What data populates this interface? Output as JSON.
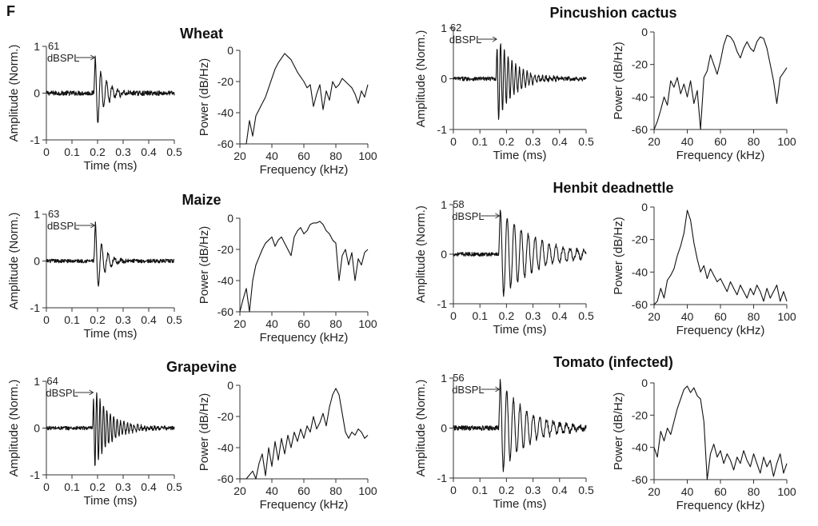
{
  "panel_label": "F",
  "chart_data": [
    {
      "type": "line",
      "plant": "Wheat",
      "level": "61",
      "level_unit": "dBSPL",
      "waveform": {
        "xlabel": "Time (ms)",
        "ylabel": "Amplitude (Norm.)",
        "xlim": [
          0,
          0.5
        ],
        "ylim": [
          -1,
          1
        ],
        "xticks": [
          "0",
          "0.1",
          "0.2",
          "0.3",
          "0.4",
          "0.5"
        ],
        "yticks": [
          "-1",
          "0",
          "1"
        ],
        "onset": 0.185,
        "peak": 1.0,
        "freq_khz": 45,
        "decay_ms": 0.035,
        "noise": 0.05
      },
      "spectrum": {
        "xlabel": "Frequency (kHz)",
        "ylabel": "Power (dB/Hz)",
        "xlim": [
          20,
          100
        ],
        "ylim": [
          -60,
          0
        ],
        "xticks": [
          "20",
          "40",
          "60",
          "80",
          "100"
        ],
        "yticks": [
          "-60",
          "-40",
          "-20",
          "0"
        ],
        "x": [
          20,
          24,
          26,
          28,
          30,
          32,
          34,
          36,
          38,
          40,
          42,
          44,
          46,
          48,
          50,
          52,
          54,
          56,
          58,
          60,
          62,
          64,
          66,
          68,
          70,
          72,
          74,
          76,
          78,
          80,
          82,
          84,
          86,
          88,
          90,
          92,
          94,
          96,
          98,
          100
        ],
        "y": [
          -60,
          -60,
          -45,
          -55,
          -42,
          -38,
          -34,
          -30,
          -24,
          -18,
          -12,
          -8,
          -5,
          -2,
          -4,
          -6,
          -10,
          -14,
          -17,
          -20,
          -24,
          -22,
          -36,
          -28,
          -22,
          -38,
          -26,
          -32,
          -20,
          -24,
          -22,
          -18,
          -20,
          -22,
          -24,
          -28,
          -34,
          -26,
          -30,
          -22
        ]
      }
    },
    {
      "type": "line",
      "plant": "Maize",
      "level": "63",
      "level_unit": "dBSPL",
      "waveform": {
        "xlabel": "Time (ms)",
        "ylabel": "Amplitude (Norm.)",
        "xlim": [
          0,
          0.5
        ],
        "ylim": [
          -1,
          1
        ],
        "xticks": [
          "0",
          "0.1",
          "0.2",
          "0.3",
          "0.4",
          "0.5"
        ],
        "yticks": [
          "-1",
          "0",
          "1"
        ],
        "onset": 0.185,
        "peak": 1.0,
        "freq_khz": 40,
        "decay_ms": 0.03,
        "noise": 0.04
      },
      "spectrum": {
        "xlabel": "Frequency (kHz)",
        "ylabel": "Power (dB/Hz)",
        "xlim": [
          20,
          100
        ],
        "ylim": [
          -60,
          0
        ],
        "xticks": [
          "20",
          "40",
          "60",
          "80",
          "100"
        ],
        "yticks": [
          "-60",
          "-40",
          "-20",
          "0"
        ],
        "x": [
          20,
          22,
          24,
          26,
          28,
          30,
          32,
          34,
          36,
          38,
          40,
          42,
          44,
          46,
          48,
          50,
          52,
          54,
          56,
          58,
          60,
          62,
          64,
          66,
          68,
          70,
          72,
          74,
          76,
          78,
          80,
          82,
          84,
          86,
          88,
          90,
          92,
          94,
          96,
          98,
          100
        ],
        "y": [
          -60,
          -52,
          -45,
          -60,
          -40,
          -30,
          -25,
          -20,
          -16,
          -14,
          -12,
          -18,
          -14,
          -12,
          -16,
          -20,
          -24,
          -12,
          -8,
          -6,
          -10,
          -8,
          -4,
          -3,
          -3,
          -2,
          -4,
          -8,
          -10,
          -14,
          -16,
          -40,
          -24,
          -20,
          -30,
          -22,
          -40,
          -26,
          -30,
          -22,
          -20
        ]
      }
    },
    {
      "type": "line",
      "plant": "Grapevine",
      "level": "64",
      "level_unit": "dBSPL",
      "waveform": {
        "xlabel": "Time (ms)",
        "ylabel": "Amplitude (Norm.)",
        "xlim": [
          0,
          0.5
        ],
        "ylim": [
          -1,
          1
        ],
        "xticks": [
          "0",
          "0.1",
          "0.2",
          "0.3",
          "0.4",
          "0.5"
        ],
        "yticks": [
          "-1",
          "0",
          "1"
        ],
        "onset": 0.18,
        "peak": 1.0,
        "freq_khz": 75,
        "decay_ms": 0.06,
        "noise": 0.04
      },
      "spectrum": {
        "xlabel": "Frequency (kHz)",
        "ylabel": "Power (dB/Hz)",
        "xlim": [
          20,
          100
        ],
        "ylim": [
          -60,
          0
        ],
        "xticks": [
          "20",
          "40",
          "60",
          "80",
          "100"
        ],
        "yticks": [
          "-60",
          "-40",
          "-20",
          "0"
        ],
        "x": [
          20,
          24,
          28,
          30,
          32,
          34,
          36,
          38,
          40,
          42,
          44,
          46,
          48,
          50,
          52,
          54,
          56,
          58,
          60,
          62,
          64,
          66,
          68,
          70,
          72,
          74,
          76,
          78,
          80,
          82,
          84,
          86,
          88,
          90,
          92,
          94,
          96,
          98,
          100
        ],
        "y": [
          -60,
          -60,
          -55,
          -60,
          -50,
          -44,
          -58,
          -40,
          -52,
          -36,
          -48,
          -34,
          -44,
          -32,
          -40,
          -30,
          -36,
          -28,
          -34,
          -26,
          -30,
          -20,
          -28,
          -24,
          -18,
          -26,
          -14,
          -6,
          -2,
          -6,
          -18,
          -30,
          -34,
          -30,
          -32,
          -28,
          -30,
          -34,
          -32
        ]
      }
    },
    {
      "type": "line",
      "plant": "Pincushion cactus",
      "level": "62",
      "level_unit": "dBSPL",
      "waveform": {
        "xlabel": "Time (ms)",
        "ylabel": "Amplitude (Norm.)",
        "xlim": [
          0,
          0.5
        ],
        "ylim": [
          -1,
          1
        ],
        "xticks": [
          "0",
          "0.1",
          "0.2",
          "0.3",
          "0.4",
          "0.5"
        ],
        "yticks": [
          "-1",
          "0",
          "1"
        ],
        "onset": 0.16,
        "peak": 0.95,
        "freq_khz": 70,
        "decay_ms": 0.06,
        "noise": 0.04
      },
      "spectrum": {
        "xlabel": "Frequency (kHz)",
        "ylabel": "Power (dB/Hz)",
        "xlim": [
          20,
          100
        ],
        "ylim": [
          -60,
          0
        ],
        "xticks": [
          "20",
          "40",
          "60",
          "80",
          "100"
        ],
        "yticks": [
          "-60",
          "-40",
          "-20",
          "0"
        ],
        "x": [
          20,
          22,
          24,
          26,
          28,
          30,
          32,
          34,
          36,
          38,
          40,
          42,
          44,
          46,
          48,
          50,
          52,
          54,
          56,
          58,
          60,
          62,
          64,
          66,
          68,
          70,
          72,
          74,
          76,
          78,
          80,
          82,
          84,
          86,
          88,
          90,
          92,
          94,
          96,
          98,
          100
        ],
        "y": [
          -60,
          -55,
          -48,
          -40,
          -45,
          -30,
          -34,
          -28,
          -38,
          -32,
          -40,
          -30,
          -44,
          -36,
          -60,
          -28,
          -24,
          -14,
          -20,
          -26,
          -18,
          -8,
          -2,
          -3,
          -6,
          -12,
          -16,
          -10,
          -6,
          -10,
          -12,
          -6,
          -3,
          -4,
          -10,
          -20,
          -30,
          -44,
          -28,
          -25,
          -22
        ]
      }
    },
    {
      "type": "line",
      "plant": "Henbit deadnettle",
      "level": "58",
      "level_unit": "dBSPL",
      "waveform": {
        "xlabel": "Time (ms)",
        "ylabel": "Amplitude (Norm.)",
        "xlim": [
          0,
          0.5
        ],
        "ylim": [
          -1,
          1
        ],
        "xticks": [
          "0",
          "0.1",
          "0.2",
          "0.3",
          "0.4",
          "0.5"
        ],
        "yticks": [
          "-1",
          "0",
          "1"
        ],
        "onset": 0.17,
        "peak": 0.95,
        "freq_khz": 38,
        "decay_ms": 0.13,
        "noise": 0.04
      },
      "spectrum": {
        "xlabel": "Frequency (kHz)",
        "ylabel": "Power (dB/Hz)",
        "xlim": [
          20,
          100
        ],
        "ylim": [
          -60,
          0
        ],
        "xticks": [
          "20",
          "40",
          "60",
          "80",
          "100"
        ],
        "yticks": [
          "-60",
          "-40",
          "-20",
          "0"
        ],
        "x": [
          20,
          22,
          24,
          26,
          28,
          30,
          32,
          34,
          36,
          38,
          40,
          42,
          44,
          46,
          48,
          50,
          52,
          54,
          56,
          58,
          60,
          62,
          64,
          66,
          68,
          70,
          72,
          74,
          76,
          78,
          80,
          82,
          84,
          86,
          88,
          90,
          92,
          94,
          96,
          98,
          100
        ],
        "y": [
          -60,
          -58,
          -50,
          -56,
          -45,
          -42,
          -38,
          -30,
          -24,
          -16,
          -2,
          -8,
          -22,
          -32,
          -40,
          -36,
          -44,
          -38,
          -42,
          -46,
          -44,
          -48,
          -52,
          -46,
          -50,
          -54,
          -48,
          -52,
          -56,
          -50,
          -54,
          -48,
          -52,
          -58,
          -50,
          -56,
          -52,
          -48,
          -58,
          -52,
          -58
        ]
      }
    },
    {
      "type": "line",
      "plant": "Tomato (infected)",
      "level": "56",
      "level_unit": "dBSPL",
      "waveform": {
        "xlabel": "Time (ms)",
        "ylabel": "Amplitude (Norm.)",
        "xlim": [
          0,
          0.5
        ],
        "ylim": [
          -1,
          1
        ],
        "xticks": [
          "0",
          "0.1",
          "0.2",
          "0.3",
          "0.4",
          "0.5"
        ],
        "yticks": [
          "-1",
          "0",
          "1"
        ],
        "onset": 0.17,
        "peak": 1.0,
        "freq_khz": 40,
        "decay_ms": 0.1,
        "noise": 0.05
      },
      "spectrum": {
        "xlabel": "Frequency (kHz)",
        "ylabel": "Power (dB/Hz)",
        "xlim": [
          20,
          100
        ],
        "ylim": [
          -60,
          0
        ],
        "xticks": [
          "20",
          "40",
          "60",
          "80",
          "100"
        ],
        "yticks": [
          "-60",
          "-40",
          "-20",
          "0"
        ],
        "x": [
          20,
          22,
          24,
          26,
          28,
          30,
          32,
          34,
          36,
          38,
          40,
          42,
          44,
          46,
          48,
          50,
          52,
          54,
          56,
          58,
          60,
          62,
          64,
          66,
          68,
          70,
          72,
          74,
          76,
          78,
          80,
          82,
          84,
          86,
          88,
          90,
          92,
          94,
          96,
          98,
          100
        ],
        "y": [
          -40,
          -46,
          -30,
          -36,
          -28,
          -32,
          -24,
          -16,
          -10,
          -4,
          -2,
          -6,
          -3,
          -8,
          -10,
          -24,
          -60,
          -44,
          -38,
          -46,
          -42,
          -50,
          -44,
          -48,
          -54,
          -46,
          -50,
          -42,
          -48,
          -52,
          -44,
          -50,
          -56,
          -46,
          -52,
          -48,
          -58,
          -50,
          -44,
          -56,
          -50
        ]
      }
    }
  ]
}
